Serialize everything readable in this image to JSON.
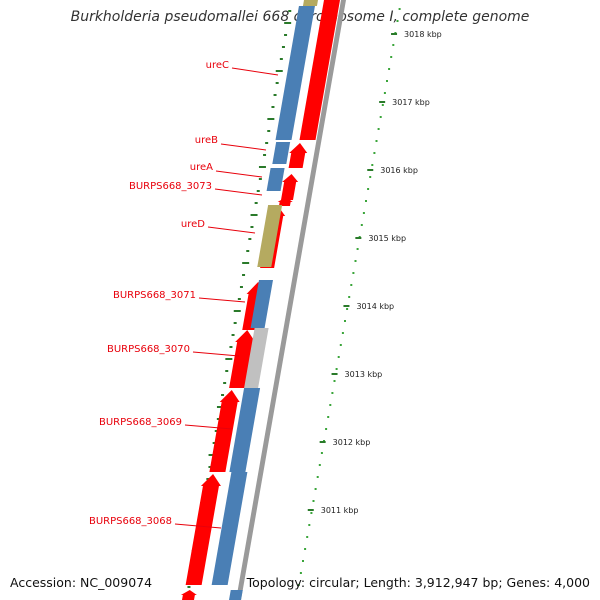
{
  "title": "Burkholderia pseudomallei 668 chromosome I, complete genome",
  "accession": "Accession: NC_009074",
  "topology": "Topology: circular; Length: 3,912,947 bp; Genes: 4,000",
  "colors": {
    "forward_strand": "#ff0000",
    "gene_blue": "#4a7fb5",
    "gene_olive": "#b5aa60",
    "gene_gray": "#c0c0c0",
    "backbone": "#9a9a9a",
    "label": "#e8000b",
    "inner_ticks": "#2a7a2a",
    "outer_dots": "#3aa53a"
  },
  "gene_labels": [
    {
      "name": "ureC"
    },
    {
      "name": "ureB"
    },
    {
      "name": "ureA"
    },
    {
      "name": "BURPS668_3073"
    },
    {
      "name": "ureD"
    },
    {
      "name": "BURPS668_3071"
    },
    {
      "name": "BURPS668_3070"
    },
    {
      "name": "BURPS668_3069"
    },
    {
      "name": "BURPS668_3068"
    }
  ],
  "scale_labels": [
    {
      "label": "3018 kbp"
    },
    {
      "label": "3017 kbp"
    },
    {
      "label": "3016 kbp"
    },
    {
      "label": "3015 kbp"
    },
    {
      "label": "3014 kbp"
    },
    {
      "label": "3013 kbp"
    },
    {
      "label": "3012 kbp"
    },
    {
      "label": "3011 kbp"
    }
  ]
}
